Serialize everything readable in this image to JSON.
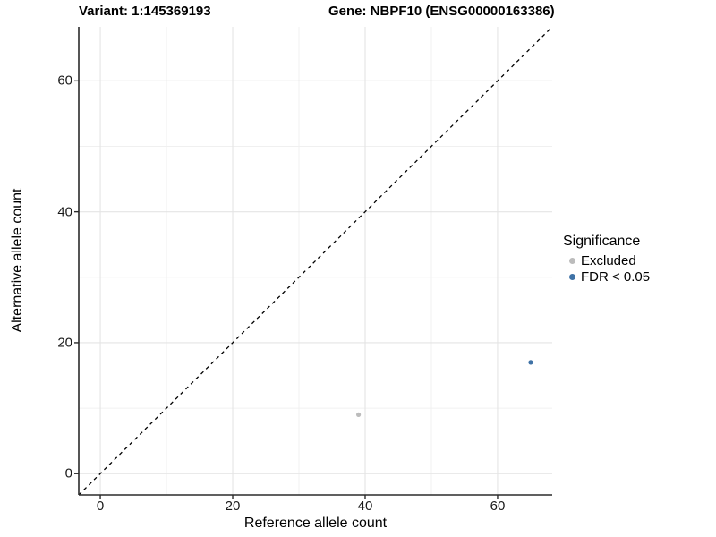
{
  "chart_data": {
    "type": "scatter",
    "titles": {
      "left": "Variant: 1:145369193",
      "right": "Gene: NBPF10 (ENSG00000163386)"
    },
    "xlabel": "Reference allele count",
    "ylabel": "Alternative allele count",
    "xlim": [
      -3.25,
      68.25
    ],
    "ylim": [
      -3.25,
      68.25
    ],
    "x_ticks": [
      0,
      20,
      40,
      60
    ],
    "y_ticks": [
      0,
      20,
      40,
      60
    ],
    "x_minor_ticks": [
      10,
      30,
      50
    ],
    "y_minor_ticks": [
      10,
      30,
      50
    ],
    "grid": "major+minor",
    "identity_line": {
      "slope": 1,
      "intercept": 0,
      "style": "dashed",
      "color": "#000000"
    },
    "legend": {
      "title": "Significance",
      "position": "right"
    },
    "series": [
      {
        "name": "Excluded",
        "color": "#bcbcbc",
        "points": [
          [
            39,
            9
          ]
        ]
      },
      {
        "name": "FDR < 0.05",
        "color": "#3f72a6",
        "points": [
          [
            65,
            17
          ]
        ]
      }
    ]
  },
  "colors": {
    "background": "#ffffff",
    "grid_major": "#e4e4e4",
    "grid_minor": "#f0f0f0",
    "axis_line": "#2b2b2b",
    "tick_mark": "#2b2b2b"
  }
}
